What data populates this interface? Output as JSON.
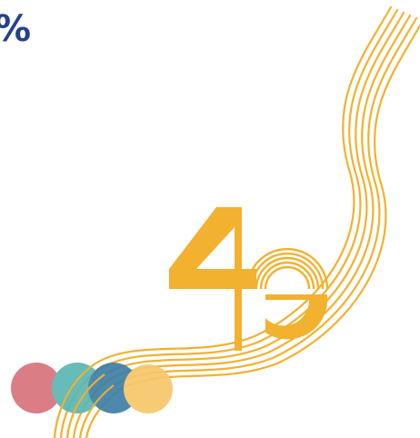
{
  "headline": {
    "text": "%"
  },
  "colors": {
    "accent": "#F2B12E",
    "headline": "#24418E",
    "dot_red": "#D9737B",
    "dot_teal": "#5BB6B4",
    "dot_blue": "#3E7FA6",
    "dot_yellow": "#F7C76B"
  },
  "logo": {
    "icon": "anniversary-40-logo",
    "label": "40"
  }
}
